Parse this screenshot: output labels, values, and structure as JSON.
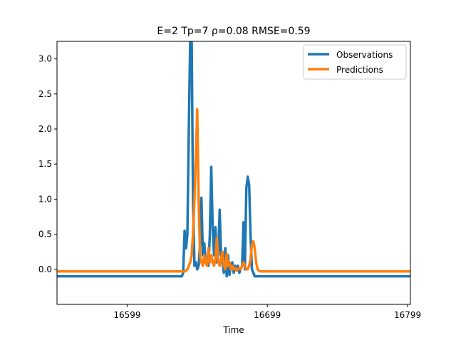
{
  "chart_data": {
    "type": "line",
    "title": "E=2 Tp=7  ρ=0.08 RMSE=0.59",
    "xlabel": "Time",
    "ylabel": "",
    "xlim": [
      16549,
      16801
    ],
    "ylim": [
      -0.5,
      3.25
    ],
    "x_ticks": [
      16599,
      16699,
      16799
    ],
    "y_ticks": [
      0.0,
      0.5,
      1.0,
      1.5,
      2.0,
      2.5,
      3.0
    ],
    "grid": false,
    "legend_position": "top-right",
    "series": [
      {
        "name": "Observations",
        "color": "#1f77b4",
        "points": [
          [
            16549,
            -0.1
          ],
          [
            16638,
            -0.1
          ],
          [
            16639,
            -0.05
          ],
          [
            16640,
            0.55
          ],
          [
            16641,
            0.3
          ],
          [
            16642,
            0.5
          ],
          [
            16643,
            2.0
          ],
          [
            16644,
            3.3
          ],
          [
            16645,
            3.3
          ],
          [
            16646,
            1.0
          ],
          [
            16647,
            0.05
          ],
          [
            16648,
            0.1
          ],
          [
            16649,
            0.0
          ],
          [
            16650,
            0.05
          ],
          [
            16651,
            0.35
          ],
          [
            16652,
            1.02
          ],
          [
            16653,
            0.2
          ],
          [
            16654,
            0.37
          ],
          [
            16655,
            0.1
          ],
          [
            16656,
            0.08
          ],
          [
            16657,
            0.05
          ],
          [
            16658,
            0.5
          ],
          [
            16659,
            1.46
          ],
          [
            16660,
            0.6
          ],
          [
            16661,
            0.2
          ],
          [
            16662,
            0.6
          ],
          [
            16663,
            0.1
          ],
          [
            16664,
            0.2
          ],
          [
            16665,
            0.85
          ],
          [
            16666,
            0.2
          ],
          [
            16667,
            0.1
          ],
          [
            16668,
            -0.05
          ],
          [
            16669,
            0.3
          ],
          [
            16670,
            -0.1
          ],
          [
            16671,
            0.2
          ],
          [
            16672,
            -0.08
          ],
          [
            16673,
            0.05
          ],
          [
            16674,
            0.1
          ],
          [
            16675,
            -0.05
          ],
          [
            16676,
            0.05
          ],
          [
            16677,
            0.0
          ],
          [
            16678,
            0.05
          ],
          [
            16679,
            -0.05
          ],
          [
            16680,
            0.0
          ],
          [
            16681,
            0.05
          ],
          [
            16682,
            0.67
          ],
          [
            16683,
            0.0
          ],
          [
            16684,
            1.15
          ],
          [
            16685,
            1.32
          ],
          [
            16686,
            1.2
          ],
          [
            16687,
            0.5
          ],
          [
            16688,
            0.0
          ],
          [
            16689,
            -0.05
          ],
          [
            16690,
            -0.1
          ],
          [
            16801,
            -0.1
          ]
        ]
      },
      {
        "name": "Predictions",
        "color": "#ff7f0e",
        "points": [
          [
            16549,
            -0.03
          ],
          [
            16640,
            -0.03
          ],
          [
            16641,
            -0.02
          ],
          [
            16642,
            0.0
          ],
          [
            16643,
            0.05
          ],
          [
            16644,
            0.1
          ],
          [
            16645,
            0.2
          ],
          [
            16646,
            0.5
          ],
          [
            16647,
            1.0
          ],
          [
            16648,
            1.6
          ],
          [
            16649,
            2.28
          ],
          [
            16650,
            1.0
          ],
          [
            16651,
            0.2
          ],
          [
            16652,
            0.1
          ],
          [
            16653,
            0.05
          ],
          [
            16654,
            0.2
          ],
          [
            16655,
            0.1
          ],
          [
            16656,
            0.05
          ],
          [
            16657,
            0.3
          ],
          [
            16658,
            0.1
          ],
          [
            16659,
            0.2
          ],
          [
            16660,
            0.1
          ],
          [
            16661,
            0.05
          ],
          [
            16662,
            0.15
          ],
          [
            16663,
            0.45
          ],
          [
            16664,
            0.1
          ],
          [
            16665,
            0.05
          ],
          [
            16666,
            0.15
          ],
          [
            16667,
            0.25
          ],
          [
            16668,
            0.05
          ],
          [
            16669,
            0.0
          ],
          [
            16670,
            0.22
          ],
          [
            16671,
            0.05
          ],
          [
            16672,
            0.1
          ],
          [
            16673,
            0.0
          ],
          [
            16674,
            0.05
          ],
          [
            16675,
            0.0
          ],
          [
            16676,
            0.02
          ],
          [
            16677,
            -0.02
          ],
          [
            16678,
            0.0
          ],
          [
            16679,
            0.02
          ],
          [
            16680,
            0.0
          ],
          [
            16681,
            0.05
          ],
          [
            16682,
            0.1
          ],
          [
            16683,
            0.05
          ],
          [
            16684,
            0.0
          ],
          [
            16685,
            0.0
          ],
          [
            16686,
            0.05
          ],
          [
            16687,
            0.15
          ],
          [
            16688,
            0.35
          ],
          [
            16689,
            0.4
          ],
          [
            16690,
            0.3
          ],
          [
            16691,
            0.1
          ],
          [
            16692,
            0.0
          ],
          [
            16693,
            -0.02
          ],
          [
            16694,
            -0.03
          ],
          [
            16801,
            -0.03
          ]
        ]
      }
    ]
  }
}
